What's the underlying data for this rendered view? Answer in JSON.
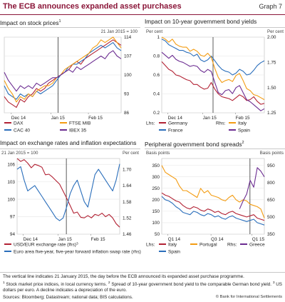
{
  "header": {
    "title": "The ECB announces expanded asset purchases",
    "graph_label": "Graph 7"
  },
  "colors": {
    "accent": "#8a1538",
    "blue": "#2a6ebb",
    "red": "#b22234",
    "orange": "#f39c12",
    "purple": "#6b2c91",
    "olive": "#8b8b3a"
  },
  "panels": {
    "stock": {
      "title": "Impact on stock prices",
      "note": "1",
      "unit": "21 Jan 2015 = 100"
    },
    "bonds": {
      "title": "Impact on 10-year government bond yields",
      "unit_left": "Per cent",
      "unit_right": "Per cent",
      "lhs_label": "Lhs:",
      "rhs_label": "Rhs:"
    },
    "fx": {
      "title": "Impact on exchange rates and inflation expectations",
      "unit_left": "21 Jan 2015 = 100",
      "unit_right": "Per cent",
      "leg_note": "3"
    },
    "spreads": {
      "title": "Peripheral government bond spreads",
      "note": "2",
      "unit_left": "Basis points",
      "unit_right": "Basis points",
      "lhs_label": "Lhs:",
      "rhs_label": "Rhs:"
    }
  },
  "footer": {
    "line1": "The vertical line indicates 21 January 2015, the day before the ECB announced its expanded asset purchase programme.",
    "n1": "1",
    "fn1": " Stock market price indices, in local currency terms. ",
    "n2": "2",
    "fn2": " Spread of 10-year government bond yield to the comparable German bond yield. ",
    "n3": "3",
    "fn3": " US dollars per euro. A decline indicates a depreciation of the euro.",
    "sources": "Sources: Bloomberg; Datastream; national data; BIS calculations.",
    "copyright": "© Bank for International Settlements"
  },
  "chart_data": [
    {
      "type": "line",
      "title": "Impact on stock prices",
      "unit": "21 Jan 2015 = 100",
      "x_ticks": [
        "Dec 14",
        "Jan 15",
        "Feb 15"
      ],
      "y_right_ticks": [
        86,
        93,
        100,
        107,
        114
      ],
      "ylim": [
        86,
        114
      ],
      "series": [
        {
          "name": "DAX",
          "color": "#b22234",
          "axis": "right",
          "values": [
            92,
            90,
            89,
            88,
            91,
            90,
            92,
            93,
            95,
            94,
            95,
            97,
            98,
            99,
            100,
            101,
            102,
            104,
            105,
            104,
            106,
            107,
            108,
            109,
            110,
            111,
            112,
            113,
            112,
            111
          ]
        },
        {
          "name": "CAC 40",
          "color": "#2a6ebb",
          "axis": "right",
          "values": [
            96,
            93,
            92,
            91,
            93,
            92,
            93,
            92,
            94,
            93,
            94,
            95,
            96,
            98,
            100,
            101,
            103,
            104,
            104,
            105,
            106,
            108,
            109,
            110,
            111,
            110,
            111,
            112,
            110,
            109
          ]
        },
        {
          "name": "FTSE MIB",
          "color": "#f39c12",
          "axis": "right",
          "values": [
            98,
            95,
            93,
            90,
            92,
            91,
            93,
            92,
            94,
            95,
            96,
            96,
            97,
            99,
            100,
            102,
            103,
            104,
            105,
            106,
            107,
            108,
            110,
            111,
            113,
            112,
            113,
            114,
            112,
            110
          ]
        },
        {
          "name": "IBEX 35",
          "color": "#6b2c91",
          "axis": "right",
          "values": [
            101,
            98,
            96,
            94,
            96,
            95,
            96,
            95,
            97,
            96,
            97,
            98,
            99,
            99,
            100,
            101,
            102,
            101,
            103,
            102,
            103,
            104,
            105,
            106,
            107,
            106,
            108,
            109,
            107,
            106
          ]
        }
      ]
    },
    {
      "type": "line",
      "title": "Impact on 10-year government bond yields",
      "x_ticks": [
        "Dec 14",
        "Jan 15",
        "Feb 15"
      ],
      "y_left_ticks": [
        0.2,
        0.4,
        0.6,
        0.8,
        1.0
      ],
      "y_right_ticks": [
        1.25,
        1.5,
        1.75,
        2.0
      ],
      "ylim_left": [
        0.2,
        1.0
      ],
      "ylim_right": [
        1.25,
        2.0
      ],
      "series": [
        {
          "name": "Germany",
          "color": "#b22234",
          "axis": "left",
          "values": [
            0.74,
            0.7,
            0.66,
            0.64,
            0.6,
            0.59,
            0.57,
            0.55,
            0.54,
            0.5,
            0.5,
            0.47,
            0.45,
            0.46,
            0.52,
            0.45,
            0.4,
            0.37,
            0.36,
            0.35,
            0.33,
            0.36,
            0.39,
            0.37,
            0.33,
            0.34,
            0.37,
            0.32,
            0.29,
            0.3
          ]
        },
        {
          "name": "France",
          "color": "#2a6ebb",
          "axis": "left",
          "values": [
            0.98,
            0.96,
            0.92,
            0.9,
            0.88,
            0.86,
            0.86,
            0.84,
            0.83,
            0.8,
            0.82,
            0.76,
            0.74,
            0.76,
            0.8,
            0.75,
            0.7,
            0.66,
            0.64,
            0.63,
            0.6,
            0.62,
            0.66,
            0.64,
            0.6,
            0.61,
            0.65,
            0.7,
            0.73,
            0.75
          ]
        },
        {
          "name": "Italy",
          "color": "#f39c12",
          "axis": "right",
          "values": [
            2.0,
            1.98,
            1.95,
            1.98,
            1.93,
            1.91,
            1.9,
            1.9,
            1.86,
            1.88,
            1.86,
            1.82,
            1.81,
            1.84,
            1.8,
            1.69,
            1.6,
            1.55,
            1.57,
            1.58,
            1.56,
            1.62,
            1.64,
            1.57,
            1.49,
            1.47,
            1.43,
            1.42,
            1.4,
            1.38
          ]
        },
        {
          "name": "Spain",
          "color": "#6b2c91",
          "axis": "right",
          "values": [
            1.85,
            1.82,
            1.79,
            1.82,
            1.78,
            1.76,
            1.75,
            1.73,
            1.71,
            1.72,
            1.71,
            1.67,
            1.65,
            1.68,
            1.66,
            1.55,
            1.45,
            1.43,
            1.47,
            1.48,
            1.44,
            1.5,
            1.52,
            1.45,
            1.38,
            1.36,
            1.33,
            1.3,
            1.27,
            1.29
          ]
        }
      ]
    },
    {
      "type": "line",
      "title": "Impact on exchange rates and inflation expectations",
      "x_ticks": [
        "Dec 14",
        "Jan 15",
        "Feb 15"
      ],
      "y_left_ticks": [
        94,
        97,
        100,
        103,
        106
      ],
      "y_right_ticks": [
        1.46,
        1.52,
        1.58,
        1.64,
        1.7
      ],
      "ylim_left": [
        94,
        107
      ],
      "ylim_right": [
        1.46,
        1.74
      ],
      "series": [
        {
          "name": "USD/EUR exchange rate (lhs)",
          "color": "#b22234",
          "axis": "left",
          "values": [
            107,
            106.5,
            106.8,
            106.2,
            105.4,
            106.0,
            105.8,
            105.5,
            104.2,
            104.3,
            103.8,
            103.2,
            102.6,
            101.4,
            100.2,
            98.9,
            97.6,
            97.8,
            96.9,
            96.8,
            97.2,
            96.8,
            97.4,
            97.2,
            97.6,
            97.0,
            97.4,
            96.8,
            95.8,
            95.2
          ]
        },
        {
          "name": "Euro area five-year, five-year forward inflation swap rate (rhs)",
          "color": "#2a6ebb",
          "axis": "right",
          "values": [
            1.7,
            1.71,
            1.66,
            1.62,
            1.63,
            1.64,
            1.62,
            1.6,
            1.58,
            1.56,
            1.54,
            1.52,
            1.51,
            1.52,
            1.56,
            1.61,
            1.64,
            1.66,
            1.62,
            1.58,
            1.56,
            1.62,
            1.68,
            1.7,
            1.68,
            1.66,
            1.64,
            1.62,
            1.66,
            1.72
          ]
        }
      ]
    },
    {
      "type": "line",
      "title": "Peripheral government bond spreads",
      "x_ticks": [
        "Q1 14",
        "Q3 14",
        "Q1 15"
      ],
      "y_left_ticks": [
        50,
        100,
        150,
        200,
        250,
        300,
        350
      ],
      "y_right_ticks": [
        350,
        500,
        650,
        800,
        950
      ],
      "ylim_left": [
        50,
        380
      ],
      "ylim_right": [
        350,
        1010
      ],
      "series": [
        {
          "name": "Italy",
          "color": "#b22234",
          "axis": "left",
          "values": [
            230,
            220,
            215,
            205,
            195,
            190,
            175,
            165,
            160,
            170,
            165,
            155,
            150,
            160,
            155,
            145,
            150,
            140,
            135,
            145,
            150,
            140,
            135,
            130,
            125,
            130,
            135,
            120,
            115,
            110
          ]
        },
        {
          "name": "Portugal",
          "color": "#f39c12",
          "axis": "left",
          "values": [
            350,
            320,
            310,
            300,
            290,
            260,
            240,
            240,
            230,
            220,
            210,
            250,
            230,
            240,
            220,
            215,
            210,
            200,
            195,
            210,
            220,
            200,
            190,
            200,
            195,
            180,
            175,
            170,
            160,
            120
          ]
        },
        {
          "name": "Spain",
          "color": "#2a6ebb",
          "axis": "left",
          "values": [
            215,
            200,
            195,
            185,
            170,
            160,
            145,
            140,
            135,
            150,
            145,
            135,
            130,
            140,
            135,
            125,
            130,
            120,
            115,
            125,
            130,
            120,
            115,
            110,
            105,
            110,
            115,
            100,
            95,
            90
          ]
        },
        {
          "name": "Greece",
          "color": "#6b2c91",
          "axis": "right",
          "values": [
            null,
            null,
            null,
            null,
            null,
            null,
            null,
            null,
            null,
            null,
            null,
            null,
            null,
            null,
            null,
            null,
            null,
            null,
            null,
            null,
            null,
            null,
            570,
            640,
            700,
            820,
            760,
            930,
            900,
            850
          ]
        }
      ]
    }
  ]
}
